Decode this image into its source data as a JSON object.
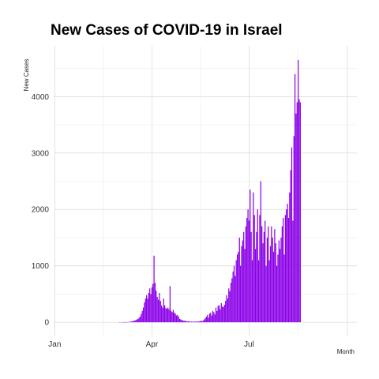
{
  "chart_data": {
    "type": "bar",
    "title": "New Cases of COVID-19 in Israel",
    "xlabel": "Month",
    "ylabel": "New Cases",
    "x_tick_labels": [
      "Jan",
      "Apr",
      "Jul"
    ],
    "y_ticks": [
      0,
      1000,
      2000,
      3000,
      4000
    ],
    "ylim": [
      -250,
      4900
    ],
    "grid": true,
    "bar_color": "#8B00E8",
    "series": [
      {
        "start_date": "2020-01-22",
        "values": [
          0,
          0,
          0,
          0,
          0,
          0,
          0,
          0,
          0,
          0,
          0,
          0,
          0,
          0,
          0,
          0,
          0,
          0,
          0,
          0,
          0,
          0,
          0,
          0,
          0,
          0,
          0,
          0,
          0,
          0,
          0,
          0,
          0,
          0,
          0,
          0,
          0,
          0,
          0,
          0,
          1,
          0,
          1,
          2,
          2,
          3,
          2,
          4,
          5,
          6,
          10,
          15,
          20,
          25,
          30,
          40,
          50,
          60,
          80,
          100,
          150,
          200,
          260,
          350,
          420,
          480,
          420,
          520,
          600,
          500,
          620,
          680,
          1180,
          700,
          560,
          450,
          400,
          520,
          380,
          300,
          260,
          420,
          300,
          250,
          240,
          260,
          230,
          640,
          200,
          180,
          220,
          170,
          150,
          120,
          130,
          100,
          60,
          50,
          40,
          30,
          30,
          25,
          20,
          15,
          20,
          15,
          10,
          12,
          10,
          12,
          10,
          15,
          10,
          12,
          15,
          20,
          25,
          20,
          30,
          50,
          70,
          100,
          130,
          80,
          150,
          170,
          120,
          200,
          180,
          140,
          260,
          200,
          290,
          300,
          230,
          340,
          280,
          270,
          310,
          380,
          480,
          420,
          600,
          550,
          700,
          780,
          900,
          1000,
          820,
          1100,
          1200,
          1250,
          1500,
          1000,
          1350,
          1450,
          1600,
          1300,
          1700,
          1850,
          2000,
          1800,
          2350,
          1600,
          1100,
          2300,
          1900,
          1300,
          1600,
          2000,
          1100,
          1900,
          2500,
          1700,
          1400,
          1600,
          1800,
          1000,
          1500,
          1700,
          1100,
          1350,
          1700,
          1500,
          1250,
          1650,
          1400,
          1000,
          1200,
          1450,
          1300,
          1500,
          1700,
          1850,
          1200,
          1900,
          2000,
          2100,
          1850,
          2300,
          2700,
          3100,
          1800,
          3300,
          4400,
          3700,
          3900,
          4650,
          3950,
          3900
        ]
      }
    ]
  }
}
